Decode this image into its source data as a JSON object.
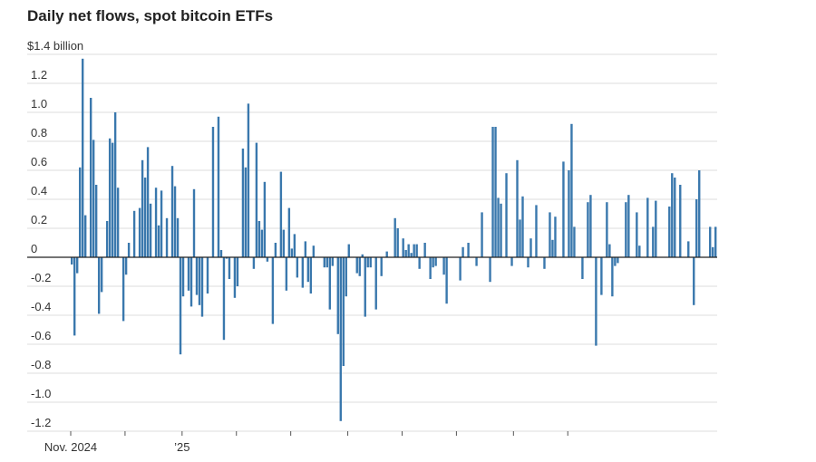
{
  "chart_data": {
    "type": "bar",
    "title": "Daily net flows, spot bitcoin ETFs",
    "unit_label": "$1.4 billion",
    "ylim": [
      -1.2,
      1.4
    ],
    "y_ticks": [
      {
        "value": 1.2,
        "label": "1.2"
      },
      {
        "value": 1.0,
        "label": "1.0"
      },
      {
        "value": 0.8,
        "label": "0.8"
      },
      {
        "value": 0.6,
        "label": "0.6"
      },
      {
        "value": 0.4,
        "label": "0.4"
      },
      {
        "value": 0.2,
        "label": "0.2"
      },
      {
        "value": 0,
        "label": "0"
      },
      {
        "value": -0.2,
        "label": "-0.2"
      },
      {
        "value": -0.4,
        "label": "-0.4"
      },
      {
        "value": -0.6,
        "label": "-0.6"
      },
      {
        "value": -0.8,
        "label": "-0.8"
      },
      {
        "value": -1.0,
        "label": "-1.0"
      },
      {
        "value": -1.2,
        "label": "-1.2"
      }
    ],
    "x_labels": [
      {
        "index": 0,
        "label": "Nov. 2024"
      },
      {
        "index": 41,
        "label": "’25"
      }
    ],
    "x_tick_indices": [
      0,
      20,
      41,
      61,
      81,
      102,
      122,
      142,
      163,
      183
    ],
    "grid": true,
    "color": "#3a78ad",
    "values": [
      -0.05,
      -0.54,
      -0.11,
      0.62,
      1.37,
      0.29,
      0.0,
      1.1,
      0.81,
      0.5,
      -0.39,
      -0.24,
      0.0,
      0.25,
      0.82,
      0.79,
      1.0,
      0.48,
      0.0,
      -0.44,
      -0.12,
      0.1,
      0.0,
      0.32,
      0.0,
      0.34,
      0.67,
      0.55,
      0.76,
      0.37,
      0.0,
      0.48,
      0.22,
      0.46,
      0.0,
      0.27,
      0.0,
      0.63,
      0.49,
      0.27,
      -0.67,
      -0.27,
      0.0,
      -0.23,
      -0.34,
      0.47,
      -0.26,
      -0.33,
      -0.41,
      0.0,
      -0.25,
      0.0,
      0.9,
      0.0,
      0.97,
      0.05,
      -0.57,
      -0.01,
      -0.15,
      0.0,
      -0.28,
      -0.2,
      0.0,
      0.75,
      0.62,
      1.06,
      0.0,
      -0.08,
      0.79,
      0.25,
      0.19,
      0.52,
      -0.03,
      0.0,
      -0.46,
      0.1,
      0.0,
      0.59,
      0.19,
      -0.23,
      0.34,
      0.06,
      0.16,
      -0.14,
      0.0,
      -0.21,
      0.11,
      -0.17,
      -0.25,
      0.08,
      0.0,
      0.0,
      0.0,
      -0.07,
      -0.07,
      -0.36,
      -0.06,
      0.0,
      -0.53,
      -1.13,
      -0.75,
      -0.27,
      0.09,
      0.0,
      0.0,
      -0.11,
      -0.13,
      0.02,
      -0.41,
      -0.07,
      -0.07,
      0.0,
      -0.36,
      0.0,
      -0.13,
      0.0,
      0.04,
      0.0,
      0.0,
      0.27,
      0.2,
      0.0,
      0.13,
      0.05,
      0.09,
      0.03,
      0.09,
      0.09,
      -0.08,
      0.0,
      0.1,
      0.0,
      -0.15,
      -0.07,
      -0.06,
      0.0,
      0.0,
      -0.12,
      -0.32,
      0.0,
      0.0,
      0.0,
      0.0,
      -0.16,
      0.07,
      0.0,
      0.1,
      0.0,
      0.0,
      -0.06,
      0.0,
      0.31,
      0.0,
      0.0,
      -0.17,
      0.9,
      0.9,
      0.41,
      0.37,
      0.0,
      0.58,
      0.0,
      -0.06,
      0.0,
      0.67,
      0.26,
      0.42,
      0.0,
      -0.07,
      0.13,
      0.0,
      0.36,
      0.0,
      0.0,
      -0.08,
      0.0,
      0.31,
      0.12,
      0.28,
      0.0,
      0.0,
      0.66,
      0.0,
      0.6,
      0.92,
      0.21,
      0.0,
      0.0,
      -0.15,
      0.0,
      0.38,
      0.43,
      0.0,
      -0.61,
      0.0,
      -0.26,
      0.0,
      0.38,
      0.09,
      -0.27,
      -0.06,
      -0.04,
      0.0,
      0.0,
      0.38,
      0.43,
      0.0,
      0.0,
      0.31,
      0.08,
      0.0,
      0.0,
      0.41,
      0.0,
      0.21,
      0.39,
      0.0,
      0.0,
      0.0,
      0.0,
      0.35,
      0.58,
      0.55,
      0.0,
      0.5,
      0.0,
      0.0,
      0.11,
      0.0,
      -0.33,
      0.4,
      0.6,
      0.0,
      0.0,
      0.0,
      0.21,
      0.07,
      0.21
    ]
  }
}
